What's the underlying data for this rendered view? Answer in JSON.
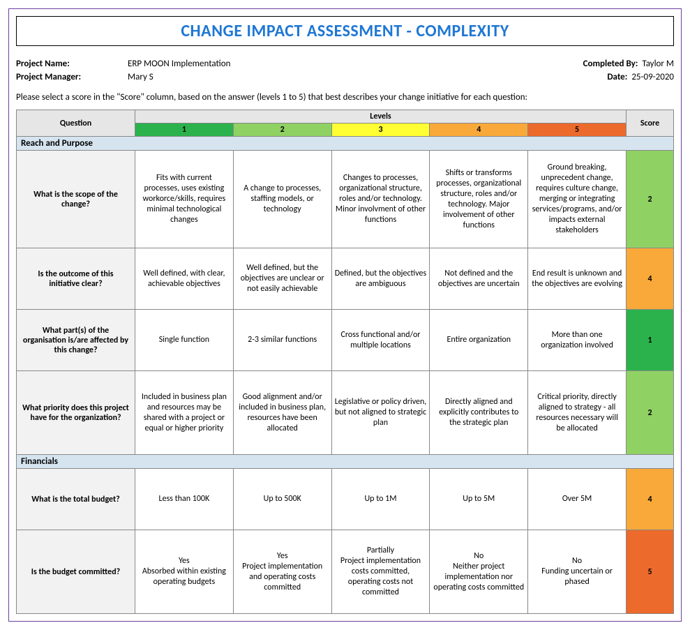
{
  "title": "CHANGE IMPACT ASSESSMENT - COMPLEXITY",
  "meta": {
    "projectNameLabel": "Project Name:",
    "projectName": "ERP MOON Implementation",
    "projectManagerLabel": "Project Manager:",
    "projectManager": "Mary S",
    "completedByLabel": "Completed By:",
    "completedBy": "Taylor M",
    "dateLabel": "Date:",
    "date": "25-09-2020"
  },
  "instructions": "Please select a score in the \"Score\" column, based on the answer (levels 1 to 5) that best describes your change initiative for each question:",
  "headers": {
    "question": "Question",
    "levels": "Levels",
    "score": "Score",
    "l1": "1",
    "l2": "2",
    "l3": "3",
    "l4": "4",
    "l5": "5"
  },
  "level_colors": {
    "1": "#2bb24c",
    "2": "#8fd163",
    "3": "#ffff33",
    "4": "#f8a93a",
    "5": "#ec6a2c"
  },
  "score_color_map": {
    "1": "#2bb24c",
    "2": "#8fd163",
    "3": "#ffff33",
    "4": "#f8a93a",
    "5": "#ec6a2c"
  },
  "sections": [
    {
      "name": "Reach and Purpose",
      "rows": [
        {
          "rowClass": "scope",
          "question": "What is the scope of the change?",
          "levels": [
            "Fits with current processes, uses existing workorce/skills, requires minimal technological changes",
            "A change to processes, staffing models, or technology",
            "Changes to processes, organizational structure, roles and/or technology. Minor involvment of other functions",
            "Shifts or transforms processes, organizational structure, roles and/or technology. Major involvement of other functions",
            "Ground breaking, unprecedent change, requires culture change, merging or integrating services/programs, and/or impacts external stakeholders"
          ],
          "score": "2"
        },
        {
          "rowClass": "med",
          "question": "Is the outcome of this initiative clear?",
          "levels": [
            "Well defined, with clear, achievable objectives",
            "Well defined, but the objectives are unclear or not easily achievable",
            "Defined, but the objectives are ambiguous",
            "Not defined and the objectives are uncertain",
            "End result is unknown and the objectives are evolving"
          ],
          "score": "4"
        },
        {
          "rowClass": "med",
          "question": "What part(s) of the organisation is/are affected by this change?",
          "levels": [
            "Single function",
            "2-3 similar functions",
            "Cross functional and/or multiple locations",
            "Entire organization",
            "More than one organization involved"
          ],
          "score": "1"
        },
        {
          "rowClass": "tall",
          "question": "What priority does this project have for the organization?",
          "levels": [
            "Included in business plan and resources may be shared with a project or equal or higher priority",
            "Good alignment and/or included in business plan, resources have been allocated",
            "Legislative or policy driven, but not aligned to strategic plan",
            "Directly aligned and explicitly contributes to the strategic plan",
            "Critical priority, directly aligned to strategy - all resources necessary will be allocated"
          ],
          "score": "2"
        }
      ]
    },
    {
      "name": "Financials",
      "rows": [
        {
          "rowClass": "med",
          "question": "What is the total budget?",
          "levels": [
            "Less than 100K",
            "Up to 500K",
            "Up to 1M",
            "Up to 5M",
            "Over 5M"
          ],
          "score": "4"
        },
        {
          "rowClass": "tall",
          "question": "Is the budget committed?",
          "levels": [
            "Yes\nAbsorbed within existing operating budgets",
            "Yes\nProject implementation and operating costs committed",
            "Partially\nProject implementation costs committed, operating costs not committed",
            "No\nNeither project implementation nor operating costs committed",
            "No\nFunding uncertain or phased"
          ],
          "score": "5"
        }
      ]
    }
  ]
}
